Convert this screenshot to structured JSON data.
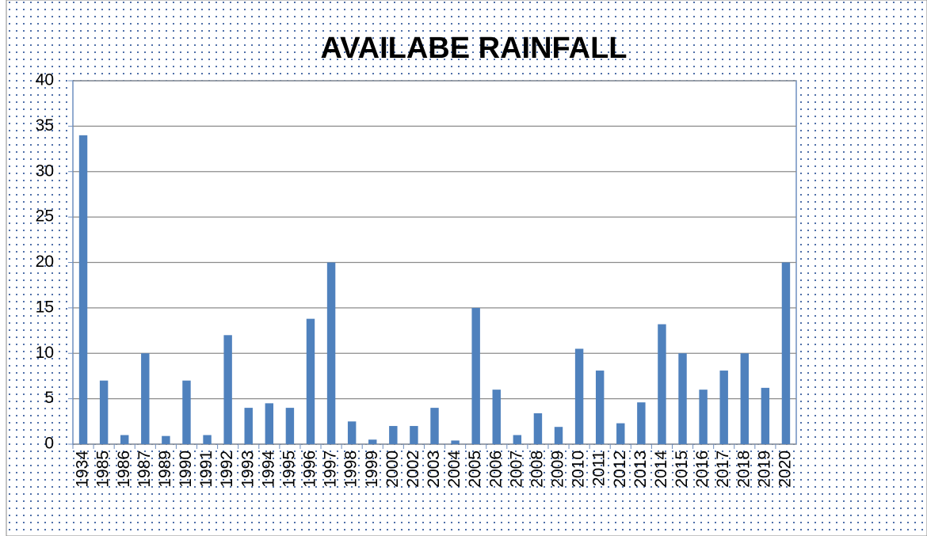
{
  "chart_data": {
    "type": "bar",
    "title": "AVAILABE RAINFALL",
    "categories": [
      "1934",
      "1985",
      "1986",
      "1987",
      "1989",
      "1990",
      "1991",
      "1992",
      "1993",
      "1994",
      "1995",
      "1996",
      "1997",
      "1998",
      "1999",
      "2000",
      "2002",
      "2003",
      "2004",
      "2005",
      "2006",
      "2007",
      "2008",
      "2009",
      "2010",
      "2011",
      "2012",
      "2013",
      "2014",
      "2015",
      "2016",
      "2017",
      "2018",
      "2019",
      "2020"
    ],
    "values": [
      34,
      7,
      1,
      10,
      0.9,
      7,
      1,
      12,
      4,
      4.5,
      4,
      13.8,
      20,
      2.5,
      0.5,
      2,
      2,
      4,
      0.4,
      15,
      6,
      1,
      3.4,
      1.9,
      10.5,
      8.1,
      2.3,
      4.6,
      13.2,
      10,
      6,
      8.1,
      10,
      6.2,
      20
    ],
    "color": "#4f81bd",
    "ylim": [
      0,
      40
    ],
    "yticks": [
      0,
      5,
      10,
      15,
      20,
      25,
      30,
      35,
      40
    ],
    "grid": true
  }
}
